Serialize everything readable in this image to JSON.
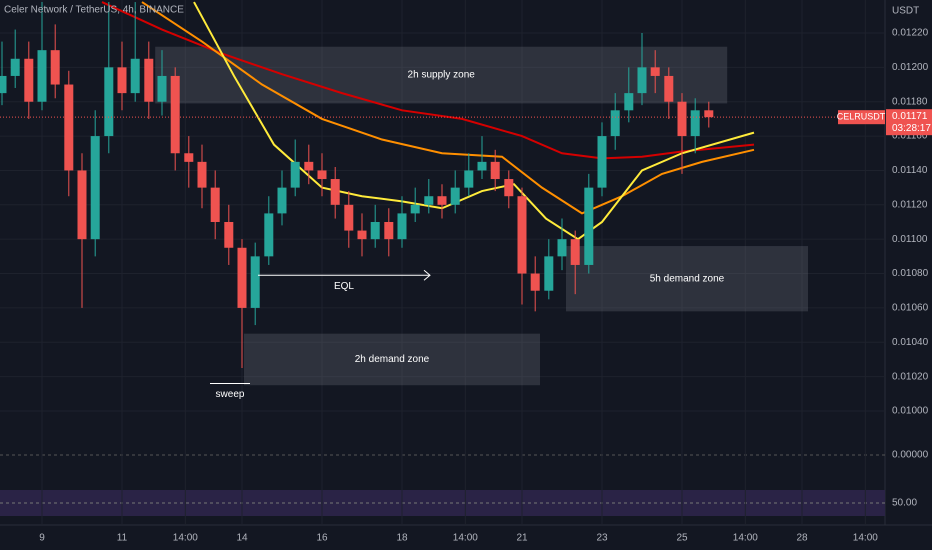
{
  "chart_data": {
    "type": "candlestick",
    "title": "Celer Network / TetherUS, 4h, BINANCE",
    "y_unit": "USDT",
    "symbol": "CELRUSDT",
    "last_price": 0.01171,
    "last_price_label": "0.01171",
    "countdown": "03:28:17",
    "up_color": "#26a69a",
    "down_color": "#ef5350",
    "xlim": [
      7.95,
      30.075
    ],
    "ylim": [
      0.009773,
      0.012392
    ],
    "xticks": [
      9,
      11,
      {
        "value": 12.583,
        "label": "14:00"
      },
      14,
      16,
      18,
      {
        "value": 19.583,
        "label": "14:00"
      },
      21,
      23,
      25,
      {
        "value": 26.583,
        "label": "14:00"
      },
      28,
      {
        "value": 29.583,
        "label": "14:00"
      }
    ],
    "yticks": [
      {
        "value": 0.01,
        "label": "0.01000"
      },
      {
        "value": 0.0102,
        "label": "0.01020"
      },
      {
        "value": 0.0104,
        "label": "0.01040"
      },
      {
        "value": 0.0106,
        "label": "0.01060"
      },
      {
        "value": 0.0108,
        "label": "0.01080"
      },
      {
        "value": 0.011,
        "label": "0.01100"
      },
      {
        "value": 0.0112,
        "label": "0.01120"
      },
      {
        "value": 0.0114,
        "label": "0.01140"
      },
      {
        "value": 0.0116,
        "label": "0.01160"
      },
      {
        "value": 0.0118,
        "label": "0.01180"
      },
      {
        "value": 0.012,
        "label": "0.01200"
      },
      {
        "value": 0.0122,
        "label": "0.01220"
      }
    ],
    "x": [
      8,
      8.33,
      8.67,
      9,
      9.33,
      9.67,
      10,
      10.33,
      10.67,
      11,
      11.33,
      11.67,
      12,
      12.33,
      12.67,
      13,
      13.33,
      13.67,
      14,
      14.33,
      14.67,
      15,
      15.33,
      15.67,
      16,
      16.33,
      16.67,
      17,
      17.33,
      17.67,
      18,
      18.33,
      18.67,
      19,
      19.33,
      19.67,
      20,
      20.33,
      20.67,
      21,
      21.33,
      21.67,
      22,
      22.33,
      22.67,
      23,
      23.33,
      23.67,
      24,
      24.33,
      24.67,
      25,
      25.33,
      25.67
    ],
    "open": [
      0.01185,
      0.01195,
      0.01205,
      0.0118,
      0.0121,
      0.0119,
      0.0114,
      0.011,
      0.0116,
      0.012,
      0.01185,
      0.01205,
      0.0118,
      0.01195,
      0.0115,
      0.01145,
      0.0113,
      0.0111,
      0.01095,
      0.0106,
      0.0109,
      0.01115,
      0.0113,
      0.01145,
      0.0114,
      0.01135,
      0.0112,
      0.01105,
      0.011,
      0.0111,
      0.011,
      0.01115,
      0.0112,
      0.01125,
      0.0112,
      0.0113,
      0.0114,
      0.01145,
      0.01135,
      0.01125,
      0.0108,
      0.0107,
      0.0109,
      0.011,
      0.01085,
      0.0113,
      0.0116,
      0.01175,
      0.01185,
      0.012,
      0.01195,
      0.0118,
      0.0116,
      0.01175
    ],
    "high": [
      0.01215,
      0.01222,
      0.01215,
      0.01238,
      0.01225,
      0.01198,
      0.0115,
      0.01175,
      0.01238,
      0.01215,
      0.01238,
      0.01215,
      0.0121,
      0.012,
      0.0116,
      0.01155,
      0.0114,
      0.0112,
      0.011,
      0.01098,
      0.01125,
      0.0114,
      0.01158,
      0.01155,
      0.0115,
      0.01142,
      0.01128,
      0.01115,
      0.0112,
      0.01118,
      0.01125,
      0.0113,
      0.01135,
      0.01132,
      0.0114,
      0.0115,
      0.0116,
      0.01152,
      0.0114,
      0.0113,
      0.0109,
      0.011,
      0.01112,
      0.01105,
      0.01138,
      0.01168,
      0.01185,
      0.012,
      0.0122,
      0.0121,
      0.012,
      0.01185,
      0.01182,
      0.0118
    ],
    "low": [
      0.01178,
      0.01188,
      0.0117,
      0.01175,
      0.01182,
      0.01125,
      0.0106,
      0.0109,
      0.0115,
      0.01175,
      0.0118,
      0.0117,
      0.01172,
      0.0114,
      0.0113,
      0.01118,
      0.011,
      0.01085,
      0.01025,
      0.0105,
      0.01085,
      0.01108,
      0.01125,
      0.01132,
      0.01125,
      0.01112,
      0.01095,
      0.0109,
      0.01095,
      0.0109,
      0.01095,
      0.0111,
      0.01115,
      0.01112,
      0.01115,
      0.01125,
      0.01135,
      0.01128,
      0.01118,
      0.01062,
      0.01058,
      0.01065,
      0.01082,
      0.01068,
      0.0108,
      0.01125,
      0.01152,
      0.01168,
      0.01178,
      0.01185,
      0.0117,
      0.01138,
      0.0115,
      0.01165
    ],
    "close": [
      0.01195,
      0.01205,
      0.0118,
      0.0121,
      0.0119,
      0.0114,
      0.011,
      0.0116,
      0.012,
      0.01185,
      0.01205,
      0.0118,
      0.01195,
      0.0115,
      0.01145,
      0.0113,
      0.0111,
      0.01095,
      0.0106,
      0.0109,
      0.01115,
      0.0113,
      0.01145,
      0.0114,
      0.01135,
      0.0112,
      0.01105,
      0.011,
      0.0111,
      0.011,
      0.01115,
      0.0112,
      0.01125,
      0.0112,
      0.0113,
      0.0114,
      0.01145,
      0.01135,
      0.01125,
      0.0108,
      0.0107,
      0.0109,
      0.011,
      0.01085,
      0.0113,
      0.0116,
      0.01175,
      0.01185,
      0.012,
      0.01195,
      0.0118,
      0.0116,
      0.01175,
      0.01171
    ],
    "lines": [
      {
        "color": "#d50000",
        "x": [
          10.5,
          12,
          13.5,
          15,
          16.5,
          18,
          19.5,
          21,
          22,
          23,
          24,
          25,
          26.8
        ],
        "values": [
          0.01238,
          0.01222,
          0.01208,
          0.01196,
          0.01185,
          0.01175,
          0.0117,
          0.0116,
          0.0115,
          0.01147,
          0.01148,
          0.01151,
          0.01155
        ]
      },
      {
        "color": "#ff8f00",
        "x": [
          11.5,
          13,
          14.5,
          16,
          17.5,
          19,
          20.5,
          21.5,
          22.5,
          23.5,
          24.5,
          25.5,
          26.8
        ],
        "values": [
          0.01238,
          0.01215,
          0.0119,
          0.0117,
          0.01158,
          0.0115,
          0.01148,
          0.0113,
          0.01115,
          0.01125,
          0.01138,
          0.01145,
          0.01152
        ]
      },
      {
        "color": "#ffeb3b",
        "x": [
          12.8,
          13.8,
          14.8,
          16,
          17,
          18,
          19,
          20,
          20.8,
          21.6,
          22.4,
          23,
          24,
          25,
          26.8
        ],
        "values": [
          0.01238,
          0.01195,
          0.01155,
          0.0113,
          0.01125,
          0.01122,
          0.01118,
          0.01128,
          0.01132,
          0.01112,
          0.011,
          0.0111,
          0.0114,
          0.0115,
          0.01162
        ]
      }
    ],
    "zones": [
      {
        "label": "2h supply zone",
        "x": [
          11.83,
          26.13
        ],
        "y": [
          0.01179,
          0.01212
        ]
      },
      {
        "label": "5h demand zone",
        "x": [
          22.1,
          28.15
        ],
        "y": [
          0.01058,
          0.01096
        ]
      },
      {
        "label": "2h demand zone",
        "x": [
          14.05,
          21.45
        ],
        "y": [
          0.01015,
          0.01045
        ]
      }
    ],
    "annotations": [
      {
        "text": "EQL",
        "x": [
          14.4,
          18.7
        ],
        "y": 0.01079
      },
      {
        "text": "sweep",
        "x": [
          13.2,
          14.2
        ],
        "y": 0.01016
      }
    ],
    "panel_labels": [
      "0.00000",
      "50.00"
    ]
  }
}
